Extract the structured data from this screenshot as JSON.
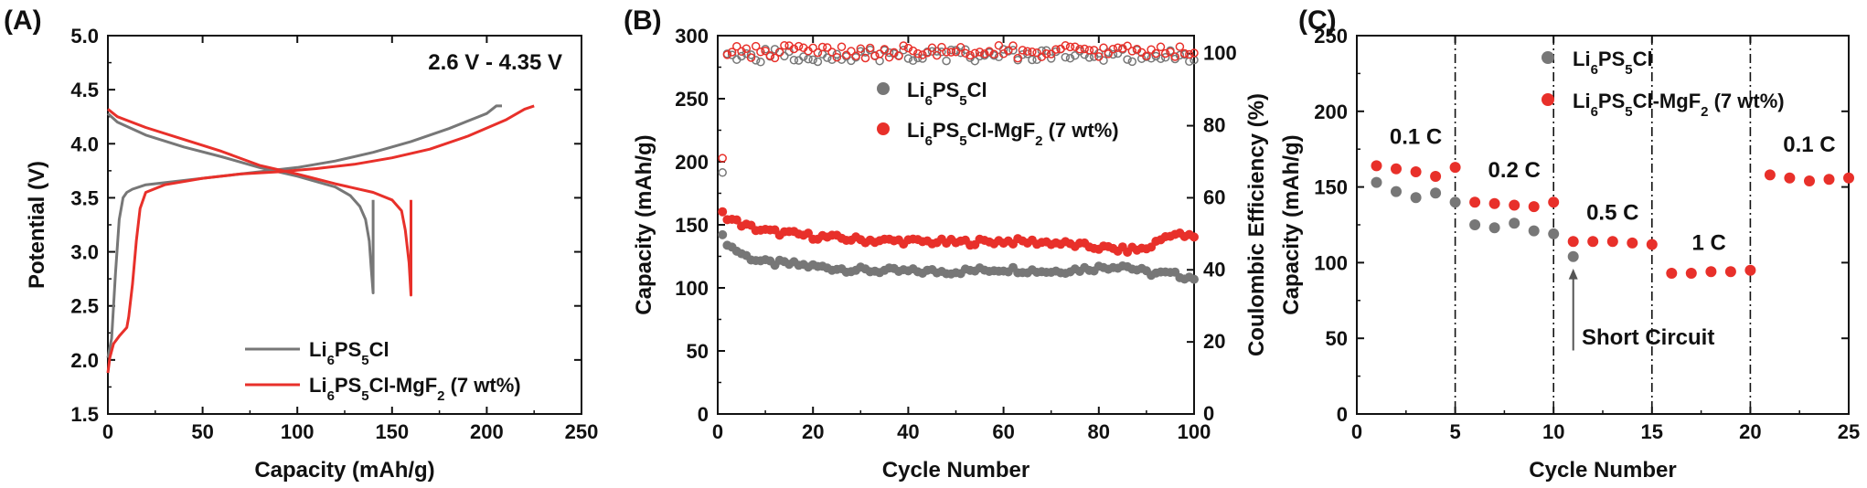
{
  "chart_data": [
    {
      "panel_label": "(A)",
      "type": "line",
      "xlabel": "Capacity (mAh/g)",
      "ylabel": "Potential (V)",
      "xlim": [
        0,
        250
      ],
      "ylim": [
        1.5,
        5.0
      ],
      "xticks": [
        "0",
        "50",
        "100",
        "150",
        "200",
        "250"
      ],
      "yticks": [
        "1.5",
        "2.0",
        "2.5",
        "3.0",
        "3.5",
        "4.0",
        "4.5",
        "5.0"
      ],
      "annotation": "2.6 V - 4.35 V",
      "legend_position": "bottom-right",
      "colors": {
        "gray": "#777777",
        "red": "#e8302a"
      },
      "series": [
        {
          "name": "Li6PS5Cl",
          "color": "#777777",
          "charge": {
            "x": [
              0,
              2,
              4,
              6,
              8,
              10,
              13,
              20,
              40,
              60,
              80,
              100,
              120,
              140,
              160,
              180,
              200,
              205,
              208
            ],
            "y": [
              2.02,
              2.2,
              2.8,
              3.3,
              3.5,
              3.55,
              3.58,
              3.62,
              3.66,
              3.7,
              3.74,
              3.78,
              3.84,
              3.92,
              4.02,
              4.14,
              4.28,
              4.35,
              4.35
            ]
          },
          "discharge": {
            "x": [
              0,
              5,
              20,
              40,
              60,
              80,
              100,
              120,
              128,
              133,
              136,
              138,
              139,
              140,
              140,
              140
            ],
            "y": [
              4.28,
              4.2,
              4.08,
              3.97,
              3.88,
              3.78,
              3.7,
              3.6,
              3.52,
              3.42,
              3.3,
              3.1,
              2.85,
              2.62,
              3.0,
              3.48
            ]
          }
        },
        {
          "name": "Li6PS5Cl-MgF2 (7 wt%)",
          "color": "#e8302a",
          "charge": {
            "x": [
              0,
              1,
              3,
              6,
              10,
              11,
              13,
              15,
              17,
              20,
              30,
              50,
              70,
              90,
              110,
              130,
              150,
              170,
              190,
              210,
              220,
              225
            ],
            "y": [
              1.88,
              2.02,
              2.15,
              2.22,
              2.3,
              2.4,
              2.7,
              3.1,
              3.4,
              3.55,
              3.62,
              3.68,
              3.72,
              3.74,
              3.77,
              3.81,
              3.87,
              3.95,
              4.07,
              4.22,
              4.32,
              4.35
            ]
          },
          "discharge": {
            "x": [
              0,
              5,
              20,
              40,
              60,
              80,
              100,
              120,
              140,
              150,
              155,
              157,
              159,
              160,
              160,
              160
            ],
            "y": [
              4.32,
              4.25,
              4.15,
              4.04,
              3.93,
              3.8,
              3.72,
              3.63,
              3.55,
              3.48,
              3.38,
              3.2,
              2.9,
              2.6,
              3.0,
              3.48
            ]
          }
        }
      ]
    },
    {
      "panel_label": "(B)",
      "type": "scatter",
      "xlabel": "Cycle Number",
      "ylabel": "Capacity (mAh/g)",
      "y2label": "Coulombic  Efficiency (%)",
      "xlim": [
        0,
        100
      ],
      "ylim": [
        0,
        300
      ],
      "y2lim": [
        0,
        105
      ],
      "xticks": [
        "0",
        "20",
        "40",
        "60",
        "80",
        "100"
      ],
      "yticks": [
        "0",
        "50",
        "100",
        "150",
        "200",
        "250",
        "300"
      ],
      "y2ticks": [
        "0",
        "20",
        "40",
        "60",
        "80",
        "100"
      ],
      "legend_position": "upper-middle",
      "series": [
        {
          "name": "Li6PS5Cl",
          "color": "#777777",
          "capacity_keypoints": {
            "x": [
              1,
              3,
              6,
              10,
              15,
              20,
              30,
              40,
              50,
              60,
              70,
              80,
              85,
              90,
              95,
              100
            ],
            "y": [
              140,
              132,
              125,
              120,
              119,
              117,
              114,
              113,
              113,
              115,
              113,
              116,
              118,
              112,
              111,
              108
            ]
          },
          "ce_first": 67,
          "ce_typical": 99.5
        },
        {
          "name": "Li6PS5Cl-MgF2 (7 wt%)",
          "color": "#e8302a",
          "capacity_keypoints": {
            "x": [
              1,
              3,
              6,
              10,
              15,
              20,
              30,
              40,
              50,
              60,
              70,
              80,
              85,
              90,
              95,
              100
            ],
            "y": [
              159,
              154,
              149,
              145,
              143,
              141,
              138,
              137,
              136,
              137,
              136,
              132,
              130,
              131,
              143,
              140
            ]
          },
          "ce_first": 71,
          "ce_typical": 100.5
        }
      ]
    },
    {
      "panel_label": "(C)",
      "type": "scatter",
      "xlabel": "Cycle Number",
      "ylabel": "Capacity (mAh/g)",
      "xlim": [
        0,
        25
      ],
      "ylim": [
        0,
        250
      ],
      "xticks": [
        "0",
        "5",
        "10",
        "15",
        "20",
        "25"
      ],
      "yticks": [
        "0",
        "50",
        "100",
        "150",
        "200",
        "250"
      ],
      "rate_divider_cycles": [
        5,
        10,
        15,
        20
      ],
      "rate_labels": [
        "0.1 C",
        "0.2 C",
        "0.5 C",
        "1 C",
        "0.1 C"
      ],
      "short_circuit_label": "Short Circuit",
      "legend_position": "top-center",
      "series": [
        {
          "name": "Li6PS5Cl",
          "color": "#777777",
          "x": [
            1,
            2,
            3,
            4,
            5,
            6,
            7,
            8,
            9,
            10,
            11
          ],
          "y": [
            153,
            147,
            143,
            146,
            140,
            125,
            123,
            126,
            121,
            119,
            104
          ]
        },
        {
          "name": "Li6PS5Cl-MgF2 (7 wt%)",
          "color": "#e8302a",
          "x": [
            1,
            2,
            3,
            4,
            5,
            6,
            7,
            8,
            9,
            10,
            11,
            12,
            13,
            14,
            15,
            16,
            17,
            18,
            19,
            20,
            21,
            22,
            23,
            24,
            25
          ],
          "y": [
            164,
            162,
            160,
            157,
            163,
            140,
            139,
            138,
            137,
            140,
            114,
            114,
            114,
            113,
            112,
            93,
            93,
            94,
            94,
            95,
            158,
            156,
            154,
            155,
            156
          ]
        }
      ]
    }
  ]
}
